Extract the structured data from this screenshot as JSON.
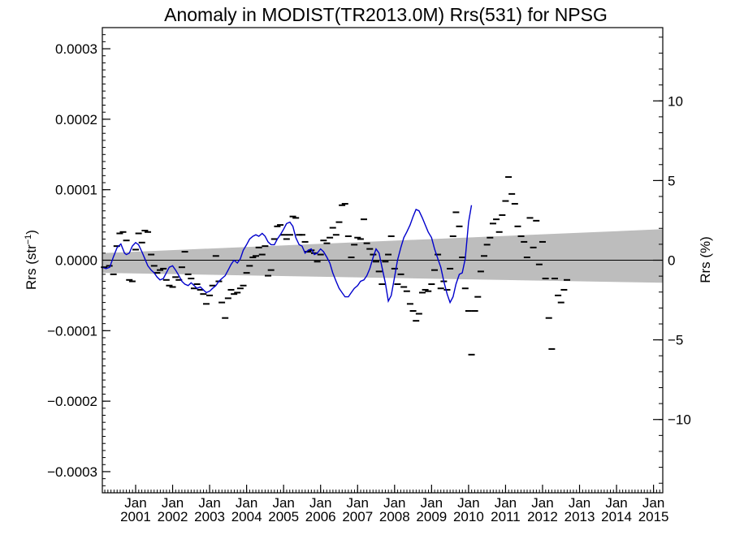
{
  "chart_data": {
    "type": "line",
    "title": "Anomaly in MODIST(TR2013.0M) Rrs(531) for NPSG",
    "ylabel": "Rrs (str",
    "ylabel_sup": "−1",
    "ylabel_close": ")",
    "y2label": "Rrs (%)",
    "xlim": [
      2000.1,
      2015.25
    ],
    "ylim": [
      -0.00033,
      0.00033
    ],
    "y2lim": [
      -14.6,
      14.6
    ],
    "grid": false,
    "yticks": [
      {
        "value": 0.0003,
        "label": "0.0003"
      },
      {
        "value": 0.0002,
        "label": "0.0002"
      },
      {
        "value": 0.0001,
        "label": "0.0001"
      },
      {
        "value": 0.0,
        "label": "0.0000"
      },
      {
        "value": -0.0001,
        "label": "−0.0001"
      },
      {
        "value": -0.0002,
        "label": "−0.0002"
      },
      {
        "value": -0.0003,
        "label": "−0.0003"
      }
    ],
    "y2ticks": [
      {
        "value": 10,
        "label": "10"
      },
      {
        "value": 5,
        "label": "5"
      },
      {
        "value": 0,
        "label": "0"
      },
      {
        "value": -5,
        "label": "−5"
      },
      {
        "value": -10,
        "label": "−10"
      }
    ],
    "xticks": [
      {
        "value": 2001,
        "month": "Jan",
        "year": "2001"
      },
      {
        "value": 2002,
        "month": "Jan",
        "year": "2002"
      },
      {
        "value": 2003,
        "month": "Jan",
        "year": "2003"
      },
      {
        "value": 2004,
        "month": "Jan",
        "year": "2004"
      },
      {
        "value": 2005,
        "month": "Jan",
        "year": "2005"
      },
      {
        "value": 2006,
        "month": "Jan",
        "year": "2006"
      },
      {
        "value": 2007,
        "month": "Jan",
        "year": "2007"
      },
      {
        "value": 2008,
        "month": "Jan",
        "year": "2008"
      },
      {
        "value": 2009,
        "month": "Jan",
        "year": "2009"
      },
      {
        "value": 2010,
        "month": "Jan",
        "year": "2010"
      },
      {
        "value": 2011,
        "month": "Jan",
        "year": "2011"
      },
      {
        "value": 2012,
        "month": "Jan",
        "year": "2012"
      },
      {
        "value": 2013,
        "month": "Jan",
        "year": "2013"
      },
      {
        "value": 2014,
        "month": "Jan",
        "year": "2014"
      },
      {
        "value": 2015,
        "month": "Jan",
        "year": "2015"
      }
    ],
    "colors": {
      "line": "#0000cc",
      "band": "#bdbdbd",
      "markers": "#000000",
      "zero_line": "#000000"
    },
    "band": {
      "lower": [
        [
          2000.1,
          -1.8e-05
        ],
        [
          2015.25,
          -3.2e-05
        ]
      ],
      "upper": [
        [
          2000.1,
          1e-05
        ],
        [
          2015.25,
          4.4e-05
        ]
      ]
    },
    "monthly_anomalies": [
      [
        2000.15,
        -1e-05
      ],
      [
        2000.29,
        -8e-06
      ],
      [
        2000.4,
        -2e-05
      ],
      [
        2000.49,
        2e-05
      ],
      [
        2000.57,
        3.8e-05
      ],
      [
        2000.66,
        4e-05
      ],
      [
        2000.75,
        2.8e-05
      ],
      [
        2000.83,
        -2.8e-05
      ],
      [
        2000.91,
        -3e-05
      ],
      [
        2001.0,
        1.5e-05
      ],
      [
        2001.08,
        3.8e-05
      ],
      [
        2001.17,
        2.5e-05
      ],
      [
        2001.25,
        4.2e-05
      ],
      [
        2001.33,
        4e-05
      ],
      [
        2001.42,
        8e-06
      ],
      [
        2001.5,
        -8e-06
      ],
      [
        2001.58,
        -1.8e-05
      ],
      [
        2001.66,
        -1.4e-05
      ],
      [
        2001.75,
        -1.2e-05
      ],
      [
        2001.83,
        -2.8e-05
      ],
      [
        2001.91,
        -3.6e-05
      ],
      [
        2002.0,
        -3.8e-05
      ],
      [
        2002.08,
        -2.4e-05
      ],
      [
        2002.17,
        -2.8e-05
      ],
      [
        2002.25,
        -1e-05
      ],
      [
        2002.33,
        1.2e-05
      ],
      [
        2002.42,
        -2e-05
      ],
      [
        2002.5,
        -2.6e-05
      ],
      [
        2002.58,
        -4e-05
      ],
      [
        2002.66,
        -3.4e-05
      ],
      [
        2002.75,
        -4.2e-05
      ],
      [
        2002.83,
        -4.8e-05
      ],
      [
        2002.91,
        -6.2e-05
      ],
      [
        2003.0,
        -5e-05
      ],
      [
        2003.08,
        -3.6e-05
      ],
      [
        2003.17,
        6e-06
      ],
      [
        2003.25,
        -3e-05
      ],
      [
        2003.33,
        -6e-05
      ],
      [
        2003.42,
        -8.2e-05
      ],
      [
        2003.5,
        -5.4e-05
      ],
      [
        2003.58,
        -4.2e-05
      ],
      [
        2003.66,
        -4.8e-05
      ],
      [
        2003.75,
        -4.6e-05
      ],
      [
        2003.83,
        -4e-05
      ],
      [
        2003.91,
        -3.6e-05
      ],
      [
        2004.0,
        -1.8e-05
      ],
      [
        2004.08,
        -8e-06
      ],
      [
        2004.17,
        4e-06
      ],
      [
        2004.25,
        6e-06
      ],
      [
        2004.33,
        1.8e-05
      ],
      [
        2004.42,
        8e-06
      ],
      [
        2004.5,
        2e-05
      ],
      [
        2004.58,
        -2.2e-05
      ],
      [
        2004.66,
        -1.4e-05
      ],
      [
        2004.75,
        3e-05
      ],
      [
        2004.83,
        4.8e-05
      ],
      [
        2004.91,
        5e-05
      ],
      [
        2005.0,
        3.6e-05
      ],
      [
        2005.08,
        3e-05
      ],
      [
        2005.17,
        3.6e-05
      ],
      [
        2005.25,
        6.2e-05
      ],
      [
        2005.33,
        6e-05
      ],
      [
        2005.42,
        3.6e-05
      ],
      [
        2005.5,
        3.6e-05
      ],
      [
        2005.58,
        2.6e-05
      ],
      [
        2005.66,
        1.2e-05
      ],
      [
        2005.75,
        1.4e-05
      ],
      [
        2005.83,
        1e-05
      ],
      [
        2005.91,
        -2e-06
      ],
      [
        2006.0,
        8e-06
      ],
      [
        2006.08,
        2.8e-05
      ],
      [
        2006.17,
        2.4e-05
      ],
      [
        2006.25,
        3.2e-05
      ],
      [
        2006.33,
        4.6e-05
      ],
      [
        2006.42,
        3.6e-05
      ],
      [
        2006.5,
        5.4e-05
      ],
      [
        2006.58,
        7.8e-05
      ],
      [
        2006.66,
        8e-05
      ],
      [
        2006.75,
        3.4e-05
      ],
      [
        2006.83,
        4e-06
      ],
      [
        2006.91,
        2.2e-05
      ],
      [
        2007.0,
        3.2e-05
      ],
      [
        2007.08,
        3e-05
      ],
      [
        2007.17,
        5.8e-05
      ],
      [
        2007.25,
        2.4e-05
      ],
      [
        2007.33,
        1.6e-05
      ],
      [
        2007.42,
        8e-06
      ],
      [
        2007.5,
        -2e-06
      ],
      [
        2007.58,
        -1.6e-05
      ],
      [
        2007.66,
        -3.4e-05
      ],
      [
        2007.75,
        -2e-06
      ],
      [
        2007.83,
        8e-06
      ],
      [
        2007.91,
        3.4e-05
      ],
      [
        2008.0,
        -1.2e-05
      ],
      [
        2008.08,
        -3.4e-05
      ],
      [
        2008.17,
        -2e-05
      ],
      [
        2008.25,
        -3.8e-05
      ],
      [
        2008.33,
        -4.4e-05
      ],
      [
        2008.42,
        -6.2e-05
      ],
      [
        2008.5,
        -7.2e-05
      ],
      [
        2008.58,
        -8.6e-05
      ],
      [
        2008.66,
        -7.6e-05
      ],
      [
        2008.75,
        -4.6e-05
      ],
      [
        2008.83,
        -4.2e-05
      ],
      [
        2008.91,
        -4.4e-05
      ],
      [
        2009.0,
        -3.4e-05
      ],
      [
        2009.08,
        -1.4e-05
      ],
      [
        2009.17,
        8e-06
      ],
      [
        2009.25,
        -4e-05
      ],
      [
        2009.33,
        -3e-05
      ],
      [
        2009.42,
        -4.2e-05
      ],
      [
        2009.5,
        -1.2e-05
      ],
      [
        2009.58,
        3.4e-05
      ],
      [
        2009.66,
        6.8e-05
      ],
      [
        2009.75,
        4.8e-05
      ],
      [
        2009.83,
        4e-06
      ],
      [
        2009.91,
        -4e-05
      ],
      [
        2010.0,
        -7.2e-05
      ],
      [
        2010.08,
        -0.000134
      ],
      [
        2010.17,
        -7.2e-05
      ],
      [
        2010.25,
        -5.2e-05
      ],
      [
        2010.33,
        -1.6e-05
      ],
      [
        2010.42,
        6e-06
      ],
      [
        2010.5,
        2.2e-05
      ],
      [
        2010.58,
        3.2e-05
      ],
      [
        2010.66,
        5.2e-05
      ],
      [
        2010.75,
        5.8e-05
      ],
      [
        2010.83,
        4e-05
      ],
      [
        2010.91,
        6.4e-05
      ],
      [
        2011.0,
        8.4e-05
      ],
      [
        2011.08,
        0.000118
      ],
      [
        2011.17,
        9.4e-05
      ],
      [
        2011.25,
        8e-05
      ],
      [
        2011.33,
        4.8e-05
      ],
      [
        2011.42,
        3.4e-05
      ],
      [
        2011.5,
        2.6e-05
      ],
      [
        2011.58,
        4e-06
      ],
      [
        2011.66,
        6e-05
      ],
      [
        2011.75,
        1.8e-05
      ],
      [
        2011.83,
        5.6e-05
      ],
      [
        2011.91,
        -6e-06
      ],
      [
        2012.0,
        2.6e-05
      ],
      [
        2012.08,
        -2.6e-05
      ],
      [
        2012.17,
        -8.2e-05
      ],
      [
        2012.25,
        -0.000126
      ],
      [
        2012.33,
        -2.6e-05
      ],
      [
        2012.42,
        -5e-05
      ],
      [
        2012.5,
        -6e-05
      ],
      [
        2012.58,
        -4.2e-05
      ],
      [
        2012.66,
        -2.8e-05
      ]
    ],
    "smoothed_series": [
      [
        2000.1,
        -1e-05
      ],
      [
        2000.2,
        -1.2e-05
      ],
      [
        2000.3,
        -1e-05
      ],
      [
        2000.4,
        5e-06
      ],
      [
        2000.5,
        1.8e-05
      ],
      [
        2000.6,
        2.3e-05
      ],
      [
        2000.7,
        1e-05
      ],
      [
        2000.75,
        8e-06
      ],
      [
        2000.83,
        1e-05
      ],
      [
        2000.91,
        2e-05
      ],
      [
        2001.0,
        2.5e-05
      ],
      [
        2001.08,
        2.2e-05
      ],
      [
        2001.17,
        1.2e-05
      ],
      [
        2001.25,
        2e-06
      ],
      [
        2001.33,
        -8e-06
      ],
      [
        2001.42,
        -1.4e-05
      ],
      [
        2001.5,
        -1.8e-05
      ],
      [
        2001.58,
        -2.4e-05
      ],
      [
        2001.66,
        -2.8e-05
      ],
      [
        2001.75,
        -2.6e-05
      ],
      [
        2001.83,
        -1.8e-05
      ],
      [
        2001.91,
        -1e-05
      ],
      [
        2002.0,
        -8e-06
      ],
      [
        2002.08,
        -1.4e-05
      ],
      [
        2002.17,
        -2.2e-05
      ],
      [
        2002.25,
        -3e-05
      ],
      [
        2002.33,
        -3.4e-05
      ],
      [
        2002.42,
        -3.6e-05
      ],
      [
        2002.5,
        -3.2e-05
      ],
      [
        2002.58,
        -3.6e-05
      ],
      [
        2002.66,
        -4e-05
      ],
      [
        2002.75,
        -3.8e-05
      ],
      [
        2002.83,
        -4.2e-05
      ],
      [
        2002.91,
        -4.6e-05
      ],
      [
        2003.0,
        -4.4e-05
      ],
      [
        2003.08,
        -4e-05
      ],
      [
        2003.17,
        -3.6e-05
      ],
      [
        2003.25,
        -3e-05
      ],
      [
        2003.33,
        -2.6e-05
      ],
      [
        2003.42,
        -2.2e-05
      ],
      [
        2003.5,
        -1.4e-05
      ],
      [
        2003.58,
        -6e-06
      ],
      [
        2003.66,
        0.0
      ],
      [
        2003.75,
        -4e-06
      ],
      [
        2003.83,
        2e-06
      ],
      [
        2003.91,
        1.4e-05
      ],
      [
        2004.0,
        2.2e-05
      ],
      [
        2004.08,
        3e-05
      ],
      [
        2004.17,
        3.4e-05
      ],
      [
        2004.25,
        3.6e-05
      ],
      [
        2004.33,
        3.4e-05
      ],
      [
        2004.42,
        3.8e-05
      ],
      [
        2004.5,
        3.4e-05
      ],
      [
        2004.58,
        2.6e-05
      ],
      [
        2004.66,
        2.2e-05
      ],
      [
        2004.75,
        2.2e-05
      ],
      [
        2004.83,
        3e-05
      ],
      [
        2004.91,
        3.6e-05
      ],
      [
        2005.0,
        4.4e-05
      ],
      [
        2005.08,
        5.2e-05
      ],
      [
        2005.17,
        5.4e-05
      ],
      [
        2005.25,
        4.8e-05
      ],
      [
        2005.33,
        3.2e-05
      ],
      [
        2005.42,
        2.2e-05
      ],
      [
        2005.5,
        2e-05
      ],
      [
        2005.58,
        1e-05
      ],
      [
        2005.66,
        1.4e-05
      ],
      [
        2005.75,
        1.6e-05
      ],
      [
        2005.83,
        8e-06
      ],
      [
        2005.91,
        1e-05
      ],
      [
        2006.0,
        1.6e-05
      ],
      [
        2006.08,
        1.2e-05
      ],
      [
        2006.17,
        4e-06
      ],
      [
        2006.25,
        -4e-06
      ],
      [
        2006.33,
        -1.8e-05
      ],
      [
        2006.42,
        -3e-05
      ],
      [
        2006.5,
        -4e-05
      ],
      [
        2006.58,
        -4.6e-05
      ],
      [
        2006.66,
        -5.2e-05
      ],
      [
        2006.75,
        -5.2e-05
      ],
      [
        2006.83,
        -4.6e-05
      ],
      [
        2006.91,
        -4e-05
      ],
      [
        2007.0,
        -3.6e-05
      ],
      [
        2007.08,
        -3e-05
      ],
      [
        2007.17,
        -2.8e-05
      ],
      [
        2007.25,
        -2.2e-05
      ],
      [
        2007.33,
        -1.2e-05
      ],
      [
        2007.42,
        4e-06
      ],
      [
        2007.5,
        1.6e-05
      ],
      [
        2007.58,
        1e-05
      ],
      [
        2007.66,
        -1e-05
      ],
      [
        2007.75,
        -3.2e-05
      ],
      [
        2007.83,
        -5.8e-05
      ],
      [
        2007.91,
        -5e-05
      ],
      [
        2008.0,
        -2.4e-05
      ],
      [
        2008.08,
        0.0
      ],
      [
        2008.17,
        1.8e-05
      ],
      [
        2008.25,
        3.2e-05
      ],
      [
        2008.33,
        4e-05
      ],
      [
        2008.42,
        5e-05
      ],
      [
        2008.5,
        6.2e-05
      ],
      [
        2008.58,
        7.2e-05
      ],
      [
        2008.66,
        7e-05
      ],
      [
        2008.75,
        6e-05
      ],
      [
        2008.83,
        5e-05
      ],
      [
        2008.91,
        4e-05
      ],
      [
        2009.0,
        3.2e-05
      ],
      [
        2009.08,
        1.6e-05
      ],
      [
        2009.17,
        2e-06
      ],
      [
        2009.25,
        -1e-05
      ],
      [
        2009.33,
        -3e-05
      ],
      [
        2009.42,
        -4.8e-05
      ],
      [
        2009.5,
        -6e-05
      ],
      [
        2009.58,
        -5.2e-05
      ],
      [
        2009.66,
        -3.4e-05
      ],
      [
        2009.75,
        -2e-05
      ],
      [
        2009.83,
        -1.8e-05
      ],
      [
        2009.91,
        2e-06
      ],
      [
        2010.0,
        5.4e-05
      ],
      [
        2010.08,
        7.8e-05
      ]
    ]
  }
}
